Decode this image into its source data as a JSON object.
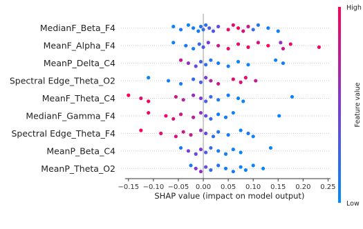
{
  "chart_data": {
    "type": "scatter",
    "subtype": "shap-beeswarm",
    "title": "",
    "xlabel": "SHAP value (impact on model output)",
    "ylabel": "",
    "xlim": [
      -0.165,
      0.255
    ],
    "x_ticks": [
      -0.15,
      -0.1,
      -0.05,
      0.0,
      0.05,
      0.1,
      0.15,
      0.2,
      0.25
    ],
    "x_tick_labels": [
      "−0.15",
      "−0.10",
      "−0.05",
      "0.00",
      "0.05",
      "0.10",
      "0.15",
      "0.20",
      "0.25"
    ],
    "grid": false,
    "colorbar": {
      "label": "Feature value",
      "high_label": "High",
      "low_label": "Low",
      "high_color": "#ff0052",
      "low_color": "#008bfb"
    },
    "features": [
      {
        "name": "MedianF_Beta_F4",
        "points": [
          {
            "x": -0.03,
            "v": 0.05
          },
          {
            "x": -0.02,
            "v": 0.1
          },
          {
            "x": -0.01,
            "v": 0.1
          },
          {
            "x": -0.005,
            "v": 0.15
          },
          {
            "x": 0.0,
            "v": 0.2
          },
          {
            "x": 0.005,
            "v": 0.2
          },
          {
            "x": 0.012,
            "v": 0.3
          },
          {
            "x": 0.02,
            "v": 0.3
          },
          {
            "x": 0.03,
            "v": 0.4
          },
          {
            "x": 0.05,
            "v": 0.9
          },
          {
            "x": 0.06,
            "v": 0.9
          },
          {
            "x": 0.07,
            "v": 1.0
          },
          {
            "x": 0.08,
            "v": 0.85
          },
          {
            "x": 0.09,
            "v": 0.8
          },
          {
            "x": 0.1,
            "v": 0.2
          },
          {
            "x": 0.11,
            "v": 0.15
          },
          {
            "x": 0.13,
            "v": 0.1
          },
          {
            "x": 0.15,
            "v": 0.05
          },
          {
            "x": -0.06,
            "v": 0.05
          },
          {
            "x": -0.045,
            "v": 0.1
          }
        ]
      },
      {
        "name": "MeanF_Alpha_F4",
        "points": [
          {
            "x": -0.06,
            "v": 0.05
          },
          {
            "x": -0.035,
            "v": 0.1
          },
          {
            "x": -0.02,
            "v": 0.1
          },
          {
            "x": -0.008,
            "v": 0.2
          },
          {
            "x": 0.0,
            "v": 0.3
          },
          {
            "x": 0.01,
            "v": 0.5
          },
          {
            "x": 0.03,
            "v": 0.8
          },
          {
            "x": 0.05,
            "v": 0.9
          },
          {
            "x": 0.07,
            "v": 0.9
          },
          {
            "x": 0.09,
            "v": 0.95
          },
          {
            "x": 0.11,
            "v": 0.85
          },
          {
            "x": 0.13,
            "v": 1.0
          },
          {
            "x": 0.16,
            "v": 0.8
          },
          {
            "x": 0.175,
            "v": 0.9
          },
          {
            "x": 0.232,
            "v": 0.95
          },
          {
            "x": 0.155,
            "v": 0.6
          }
        ]
      },
      {
        "name": "MeanP_Delta_C4",
        "points": [
          {
            "x": -0.045,
            "v": 0.8
          },
          {
            "x": -0.03,
            "v": 0.6
          },
          {
            "x": -0.015,
            "v": 0.4
          },
          {
            "x": -0.005,
            "v": 0.3
          },
          {
            "x": 0.005,
            "v": 0.2
          },
          {
            "x": 0.015,
            "v": 0.15
          },
          {
            "x": 0.03,
            "v": 0.1
          },
          {
            "x": 0.05,
            "v": 0.1
          },
          {
            "x": 0.07,
            "v": 0.05
          },
          {
            "x": 0.09,
            "v": 0.05
          },
          {
            "x": 0.145,
            "v": 0.05
          },
          {
            "x": 0.16,
            "v": 0.1
          }
        ]
      },
      {
        "name": "Spectral Edge_Theta_O2",
        "points": [
          {
            "x": -0.11,
            "v": 0.05
          },
          {
            "x": -0.07,
            "v": 0.1
          },
          {
            "x": -0.045,
            "v": 0.1
          },
          {
            "x": -0.02,
            "v": 0.2
          },
          {
            "x": -0.005,
            "v": 0.3
          },
          {
            "x": 0.005,
            "v": 0.5
          },
          {
            "x": 0.015,
            "v": 0.7
          },
          {
            "x": 0.03,
            "v": 0.8
          },
          {
            "x": 0.06,
            "v": 0.9
          },
          {
            "x": 0.075,
            "v": 0.85
          },
          {
            "x": 0.085,
            "v": 0.9
          },
          {
            "x": 0.105,
            "v": 0.75
          }
        ]
      },
      {
        "name": "MeanF_Theta_C4",
        "points": [
          {
            "x": -0.15,
            "v": 1.0
          },
          {
            "x": -0.125,
            "v": 0.9
          },
          {
            "x": -0.11,
            "v": 0.95
          },
          {
            "x": -0.055,
            "v": 0.8
          },
          {
            "x": -0.04,
            "v": 0.7
          },
          {
            "x": -0.02,
            "v": 0.6
          },
          {
            "x": -0.005,
            "v": 0.5
          },
          {
            "x": 0.005,
            "v": 0.3
          },
          {
            "x": 0.015,
            "v": 0.2
          },
          {
            "x": 0.03,
            "v": 0.1
          },
          {
            "x": 0.05,
            "v": 0.1
          },
          {
            "x": 0.07,
            "v": 0.05
          },
          {
            "x": 0.08,
            "v": 0.05
          },
          {
            "x": 0.178,
            "v": 0.05
          }
        ]
      },
      {
        "name": "MedianF_Gamma_F4",
        "points": [
          {
            "x": -0.11,
            "v": 0.95
          },
          {
            "x": -0.075,
            "v": 0.9
          },
          {
            "x": -0.06,
            "v": 0.85
          },
          {
            "x": -0.045,
            "v": 0.8
          },
          {
            "x": -0.02,
            "v": 0.7
          },
          {
            "x": -0.005,
            "v": 0.6
          },
          {
            "x": 0.005,
            "v": 0.4
          },
          {
            "x": 0.015,
            "v": 0.2
          },
          {
            "x": 0.03,
            "v": 0.1
          },
          {
            "x": 0.045,
            "v": 0.1
          },
          {
            "x": 0.06,
            "v": 0.05
          },
          {
            "x": 0.152,
            "v": 0.05
          }
        ]
      },
      {
        "name": "Spectral Edge_Theta_F4",
        "points": [
          {
            "x": -0.125,
            "v": 0.95
          },
          {
            "x": -0.085,
            "v": 0.9
          },
          {
            "x": -0.055,
            "v": 0.85
          },
          {
            "x": -0.04,
            "v": 0.8
          },
          {
            "x": -0.025,
            "v": 0.75
          },
          {
            "x": -0.005,
            "v": 0.6
          },
          {
            "x": 0.005,
            "v": 0.4
          },
          {
            "x": 0.02,
            "v": 0.2
          },
          {
            "x": 0.03,
            "v": 0.15
          },
          {
            "x": 0.05,
            "v": 0.1
          },
          {
            "x": 0.075,
            "v": 0.05
          },
          {
            "x": 0.09,
            "v": 0.1
          },
          {
            "x": 0.1,
            "v": 0.05
          }
        ]
      },
      {
        "name": "MeanP_Beta_C4",
        "points": [
          {
            "x": -0.045,
            "v": 0.1
          },
          {
            "x": -0.03,
            "v": 0.5
          },
          {
            "x": -0.015,
            "v": 0.4
          },
          {
            "x": -0.005,
            "v": 0.5
          },
          {
            "x": 0.005,
            "v": 0.3
          },
          {
            "x": 0.015,
            "v": 0.2
          },
          {
            "x": 0.03,
            "v": 0.1
          },
          {
            "x": 0.045,
            "v": 0.1
          },
          {
            "x": 0.06,
            "v": 0.05
          },
          {
            "x": 0.075,
            "v": 0.05
          },
          {
            "x": 0.135,
            "v": 0.05
          }
        ]
      },
      {
        "name": "MeanP_Theta_O2",
        "points": [
          {
            "x": -0.025,
            "v": 0.1
          },
          {
            "x": -0.015,
            "v": 0.5
          },
          {
            "x": -0.005,
            "v": 0.6
          },
          {
            "x": 0.005,
            "v": 0.4
          },
          {
            "x": 0.015,
            "v": 0.2
          },
          {
            "x": 0.03,
            "v": 0.15
          },
          {
            "x": 0.045,
            "v": 0.1
          },
          {
            "x": 0.06,
            "v": 0.1
          },
          {
            "x": 0.075,
            "v": 0.05
          },
          {
            "x": 0.085,
            "v": 0.05
          },
          {
            "x": 0.1,
            "v": 0.05
          },
          {
            "x": 0.12,
            "v": 0.05
          }
        ]
      }
    ]
  }
}
